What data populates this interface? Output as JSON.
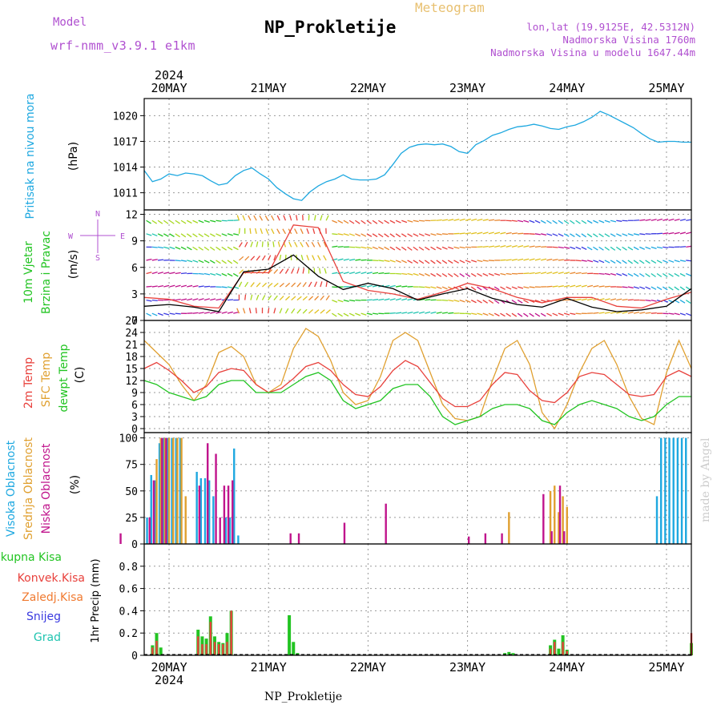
{
  "header": {
    "model_label": "Model",
    "model_name": "wrf-nmm_v3.9.1 e1km",
    "title": "NP_Prokletije",
    "subtitle": "Meteogram",
    "lonlat": "lon,lat (19.9125E, 42.5312N)",
    "altitude": "Nadmorska Visina 1760m",
    "model_altitude": "Nadmorska Visina u modelu 1647.44m",
    "footer": "NP_Prokletije",
    "credit": "made by Angel"
  },
  "colors": {
    "pressure": "#1ea8e0",
    "t2m": "#e8413c",
    "sfc": "#e0a030",
    "dewpt": "#22c422",
    "wind_speed": "#000000",
    "wind_gust": "#e8413c",
    "high_cloud": "#1ea8e0",
    "mid_cloud": "#e0a030",
    "low_cloud": "#c0148c",
    "total_precip": "#22c422",
    "conv_precip": "#e8413c",
    "frozen_precip": "#f07a30",
    "snow": "#3a3ae0",
    "hail": "#20c4b0"
  },
  "time_axis": {
    "year": "2024",
    "days": [
      "20MAY",
      "21MAY",
      "22MAY",
      "23MAY",
      "24MAY",
      "25MAY"
    ],
    "start_hour": 18,
    "end_hour": 150
  },
  "chart_data": [
    {
      "type": "line",
      "name": "pressure",
      "ylabel": [
        "Pritisak na nivou mora",
        "(hPa)"
      ],
      "ylim": [
        1009,
        1022
      ],
      "yticks": [
        "1011",
        "1014",
        "1017",
        "1020"
      ],
      "x": [
        18,
        20,
        22,
        24,
        26,
        28,
        30,
        32,
        34,
        36,
        38,
        40,
        42,
        44,
        46,
        48,
        50,
        52,
        54,
        56,
        58,
        60,
        62,
        64,
        66,
        68,
        70,
        72,
        74,
        76,
        78,
        80,
        82,
        84,
        86,
        88,
        90,
        92,
        94,
        96,
        98,
        100,
        102,
        104,
        106,
        108,
        110,
        112,
        114,
        116,
        118,
        120,
        122,
        124,
        126,
        128,
        130,
        132,
        134,
        136,
        138,
        140,
        142,
        144,
        146,
        148,
        150
      ],
      "values": [
        1013.6,
        1012.3,
        1012.6,
        1013.2,
        1013.0,
        1013.3,
        1013.2,
        1013.0,
        1012.4,
        1011.9,
        1012.1,
        1013.0,
        1013.6,
        1013.9,
        1013.2,
        1012.6,
        1011.6,
        1010.9,
        1010.3,
        1010.1,
        1011.1,
        1011.8,
        1012.3,
        1012.6,
        1013.1,
        1012.6,
        1012.5,
        1012.5,
        1012.6,
        1013.1,
        1014.3,
        1015.6,
        1016.3,
        1016.6,
        1016.7,
        1016.6,
        1016.7,
        1016.4,
        1015.8,
        1015.6,
        1016.6,
        1017.1,
        1017.7,
        1018.0,
        1018.4,
        1018.7,
        1018.8,
        1019.0,
        1018.8,
        1018.5,
        1018.4,
        1018.7,
        1018.9,
        1019.3,
        1019.8,
        1020.5,
        1020.1,
        1019.6,
        1019.1,
        1018.6,
        1017.9,
        1017.3,
        1016.9,
        1017.0,
        1017.0,
        1016.9,
        1016.9
      ]
    },
    {
      "type": "line",
      "name": "wind",
      "ylabel": [
        "10m Vjetar",
        "Brzina i Pravac",
        "(m/s)"
      ],
      "compass": [
        "W",
        "E",
        "N",
        "S"
      ],
      "ylim": [
        0,
        12.5
      ],
      "yticks": [
        "0",
        "3",
        "6",
        "9",
        "12"
      ],
      "series": [
        {
          "name": "speed",
          "x": [
            18,
            24,
            30,
            36,
            42,
            48,
            54,
            60,
            66,
            72,
            78,
            84,
            90,
            96,
            102,
            108,
            114,
            120,
            126,
            132,
            138,
            144,
            150
          ],
          "values": [
            1.6,
            1.8,
            1.5,
            1.0,
            5.5,
            5.8,
            7.4,
            5.0,
            3.5,
            4.2,
            3.6,
            2.3,
            3.0,
            3.6,
            2.5,
            1.8,
            1.5,
            2.5,
            1.5,
            1.0,
            1.2,
            1.6,
            3.6
          ]
        },
        {
          "name": "gust",
          "x": [
            18,
            24,
            30,
            36,
            42,
            48,
            54,
            60,
            66,
            72,
            78,
            84,
            90,
            96,
            102,
            108,
            114,
            120,
            126,
            132,
            138,
            144,
            150
          ],
          "values": [
            2.6,
            2.4,
            1.6,
            1.4,
            5.4,
            5.4,
            10.8,
            10.5,
            4.4,
            3.4,
            3.0,
            2.4,
            3.2,
            4.2,
            3.6,
            2.6,
            2.0,
            2.6,
            2.6,
            1.6,
            1.4,
            2.4,
            3.2
          ]
        }
      ]
    },
    {
      "type": "line",
      "name": "temperature",
      "ylabel": [
        "2m Temp",
        "SFC Temp",
        "dewpt Temp",
        "(C)"
      ],
      "ylim": [
        -1,
        27
      ],
      "yticks": [
        "0",
        "3",
        "6",
        "9",
        "12",
        "15",
        "18",
        "21",
        "24",
        "27"
      ],
      "x": [
        18,
        21,
        24,
        27,
        30,
        33,
        36,
        39,
        42,
        45,
        48,
        51,
        54,
        57,
        60,
        63,
        66,
        69,
        72,
        75,
        78,
        81,
        84,
        87,
        90,
        93,
        96,
        99,
        102,
        105,
        108,
        111,
        114,
        117,
        120,
        123,
        126,
        129,
        132,
        135,
        138,
        141,
        144,
        147,
        150
      ],
      "series": [
        {
          "name": "t2m",
          "values": [
            15,
            16.5,
            14.5,
            12,
            9,
            10.5,
            14,
            15,
            14.5,
            11,
            9,
            10,
            12.5,
            15.5,
            16.5,
            14.5,
            11,
            8.5,
            8,
            10.5,
            14.5,
            17,
            15.5,
            11.5,
            7.5,
            5.5,
            5.5,
            7,
            11,
            14,
            13.5,
            9.5,
            7,
            6.5,
            9,
            13,
            14,
            13.5,
            11,
            8.5,
            8,
            8.5,
            13,
            14.5,
            13
          ]
        },
        {
          "name": "sfc",
          "values": [
            22,
            19,
            16,
            11,
            7,
            11,
            19,
            20.5,
            18,
            11,
            9,
            11,
            20,
            25,
            23,
            17,
            9,
            6,
            7,
            13,
            22,
            24,
            22,
            14,
            6,
            2.5,
            2,
            3,
            12,
            20,
            22,
            16,
            4,
            0,
            6,
            14,
            20,
            22,
            16,
            8,
            2.5,
            1,
            14,
            22,
            15
          ]
        },
        {
          "name": "dewpt",
          "values": [
            12,
            11,
            9,
            8,
            7,
            8,
            11,
            12,
            12,
            9,
            9,
            9,
            11,
            13,
            14,
            12,
            7,
            5,
            6,
            7,
            10,
            11,
            11,
            8,
            3,
            1,
            2,
            3,
            5,
            6,
            6,
            5,
            2,
            1,
            4,
            6,
            7,
            6,
            5,
            3,
            2,
            3,
            6,
            8,
            8
          ]
        }
      ]
    },
    {
      "type": "bar",
      "name": "clouds",
      "ylabel": [
        "Visoka Oblacnost",
        "Srednja Oblacnost",
        "Niska Oblacnost",
        "(%)"
      ],
      "ylim": [
        0,
        105
      ],
      "yticks": [
        "0",
        "25",
        "50",
        "75",
        "100"
      ],
      "series": [
        {
          "name": "high",
          "x": [
            19,
            20,
            21,
            22,
            23,
            24,
            25,
            26,
            27,
            31,
            32,
            33,
            34,
            35,
            38,
            39,
            40,
            41,
            142,
            143,
            144,
            145,
            146,
            147,
            148,
            149
          ],
          "values": [
            25,
            65,
            60,
            95,
            100,
            100,
            100,
            100,
            100,
            68,
            62,
            62,
            60,
            45,
            25,
            25,
            90,
            8,
            45,
            100,
            100,
            100,
            100,
            100,
            100,
            100
          ]
        },
        {
          "name": "mid",
          "x": [
            21,
            22,
            23,
            24,
            25,
            26,
            27,
            28,
            106,
            116,
            117,
            118,
            119,
            120
          ],
          "values": [
            80,
            100,
            100,
            100,
            100,
            100,
            100,
            45,
            30,
            50,
            55,
            30,
            45,
            35
          ]
        },
        {
          "name": "low",
          "x": [
            12,
            19,
            20,
            22,
            23,
            31,
            33,
            35,
            36,
            37,
            38,
            39,
            53,
            55,
            66,
            76,
            96,
            100,
            104,
            114,
            116,
            118,
            119
          ],
          "values": [
            10,
            25,
            60,
            100,
            100,
            55,
            95,
            85,
            25,
            55,
            55,
            60,
            10,
            10,
            20,
            38,
            7,
            10,
            10,
            47,
            12,
            55,
            12
          ]
        }
      ]
    },
    {
      "type": "bar",
      "name": "precipitation",
      "ylabel": [
        "Ukupna Kisa",
        "Konvek.Kisa",
        "Zaledj.Kisa",
        "Snijeg",
        "Grad",
        "1hr Precip (mm)"
      ],
      "ylim": [
        0,
        1.0
      ],
      "yticks": [
        "0",
        "0.2",
        "0.4",
        "0.6",
        "0.8"
      ],
      "series": [
        {
          "name": "total",
          "x": [
            20,
            21,
            22,
            31,
            32,
            33,
            34,
            35,
            36,
            37,
            38,
            39,
            53,
            54,
            55,
            105,
            106,
            107,
            116,
            117,
            118,
            119,
            120,
            150
          ],
          "values": [
            0.09,
            0.2,
            0.07,
            0.23,
            0.17,
            0.15,
            0.35,
            0.17,
            0.12,
            0.11,
            0.2,
            0.4,
            0.36,
            0.12,
            0.02,
            0.02,
            0.03,
            0.02,
            0.09,
            0.14,
            0.06,
            0.18,
            0.05,
            0.11
          ]
        },
        {
          "name": "convective",
          "x": [
            20,
            21,
            31,
            32,
            33,
            34,
            35,
            36,
            37,
            38,
            39,
            116,
            117,
            119,
            120,
            150
          ],
          "values": [
            0.07,
            0.13,
            0.17,
            0.1,
            0.1,
            0.3,
            0.12,
            0.1,
            0.1,
            0.12,
            0.4,
            0.06,
            0.12,
            0.12,
            0.04,
            0.2
          ]
        }
      ]
    }
  ]
}
